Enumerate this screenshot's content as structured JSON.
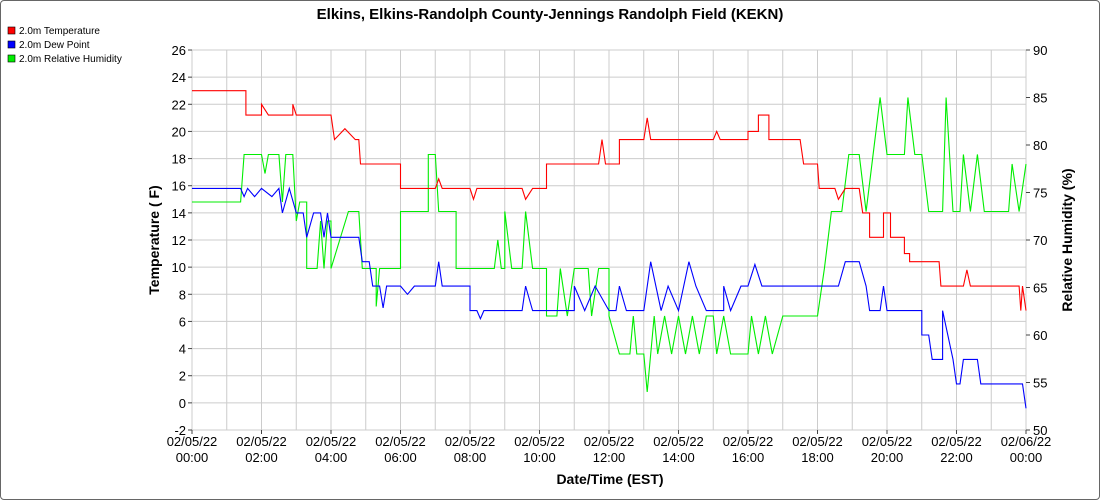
{
  "chart_data": {
    "type": "line",
    "title": "Elkins, Elkins-Randolph County-Jennings Randolph Field (KEKN)",
    "xlabel": "Date/Time (EST)",
    "ylabel_left": "Temperature ( F)",
    "ylabel_right": "Relative Humidity (%)",
    "ylim_left": [
      -2,
      26
    ],
    "ylim_right": [
      50,
      90
    ],
    "xlim_hours": [
      0,
      24
    ],
    "left_ticks": [
      -2,
      0,
      2,
      4,
      6,
      8,
      10,
      12,
      14,
      16,
      18,
      20,
      22,
      24,
      26
    ],
    "right_ticks": [
      50,
      55,
      60,
      65,
      70,
      75,
      80,
      85,
      90
    ],
    "x_ticks": [
      {
        "date": "02/05/22",
        "time": "00:00"
      },
      {
        "date": "02/05/22",
        "time": "02:00"
      },
      {
        "date": "02/05/22",
        "time": "04:00"
      },
      {
        "date": "02/05/22",
        "time": "06:00"
      },
      {
        "date": "02/05/22",
        "time": "08:00"
      },
      {
        "date": "02/05/22",
        "time": "10:00"
      },
      {
        "date": "02/05/22",
        "time": "12:00"
      },
      {
        "date": "02/05/22",
        "time": "14:00"
      },
      {
        "date": "02/05/22",
        "time": "16:00"
      },
      {
        "date": "02/05/22",
        "time": "18:00"
      },
      {
        "date": "02/05/22",
        "time": "20:00"
      },
      {
        "date": "02/05/22",
        "time": "22:00"
      },
      {
        "date": "02/06/22",
        "time": "00:00"
      }
    ],
    "grid": true,
    "legend_position": "top-left",
    "series": [
      {
        "name": "2.0m Temperature",
        "axis": "left",
        "color": "#ff0000",
        "points": [
          [
            0,
            23
          ],
          [
            1.55,
            23
          ],
          [
            1.55,
            21.2
          ],
          [
            2.0,
            21.2
          ],
          [
            2.0,
            22
          ],
          [
            2.2,
            21.2
          ],
          [
            2.9,
            21.2
          ],
          [
            2.9,
            22
          ],
          [
            3.0,
            21.2
          ],
          [
            3.5,
            21.2
          ],
          [
            3.8,
            21.2
          ],
          [
            4.0,
            21.2
          ],
          [
            4.1,
            19.4
          ],
          [
            4.4,
            20.2
          ],
          [
            4.7,
            19.4
          ],
          [
            4.8,
            19.4
          ],
          [
            4.85,
            17.6
          ],
          [
            5.2,
            17.6
          ],
          [
            6.0,
            17.6
          ],
          [
            6.0,
            15.8
          ],
          [
            7.0,
            15.8
          ],
          [
            7.1,
            16.5
          ],
          [
            7.2,
            15.8
          ],
          [
            8.0,
            15.8
          ],
          [
            8.1,
            15
          ],
          [
            8.2,
            15.8
          ],
          [
            9.5,
            15.8
          ],
          [
            9.6,
            15
          ],
          [
            9.8,
            15.8
          ],
          [
            10.0,
            15.8
          ],
          [
            10.2,
            15.8
          ],
          [
            10.2,
            17.6
          ],
          [
            11.7,
            17.6
          ],
          [
            11.8,
            19.4
          ],
          [
            11.9,
            17.6
          ],
          [
            12.0,
            17.6
          ],
          [
            12.3,
            17.6
          ],
          [
            12.3,
            19.4
          ],
          [
            13.0,
            19.4
          ],
          [
            13.1,
            21
          ],
          [
            13.2,
            19.4
          ],
          [
            15.0,
            19.4
          ],
          [
            15.1,
            20
          ],
          [
            15.2,
            19.4
          ],
          [
            16.0,
            19.4
          ],
          [
            16.0,
            20
          ],
          [
            16.3,
            20
          ],
          [
            16.3,
            21.2
          ],
          [
            16.6,
            21.2
          ],
          [
            16.6,
            19.4
          ],
          [
            17.5,
            19.4
          ],
          [
            17.6,
            17.6
          ],
          [
            18.0,
            17.6
          ],
          [
            18.05,
            15.8
          ],
          [
            18.5,
            15.8
          ],
          [
            18.6,
            15
          ],
          [
            18.8,
            15.8
          ],
          [
            19.2,
            15.8
          ],
          [
            19.3,
            14
          ],
          [
            19.5,
            14
          ],
          [
            19.5,
            12.2
          ],
          [
            19.9,
            12.2
          ],
          [
            19.9,
            14
          ],
          [
            20.1,
            14
          ],
          [
            20.1,
            12.2
          ],
          [
            20.5,
            12.2
          ],
          [
            20.5,
            11
          ],
          [
            20.65,
            11
          ],
          [
            20.65,
            10.4
          ],
          [
            21.5,
            10.4
          ],
          [
            21.55,
            8.6
          ],
          [
            22.2,
            8.6
          ],
          [
            22.3,
            9.8
          ],
          [
            22.4,
            8.6
          ],
          [
            23.8,
            8.6
          ],
          [
            23.85,
            6.8
          ],
          [
            23.9,
            8.6
          ],
          [
            24.0,
            6.8
          ]
        ]
      },
      {
        "name": "2.0m Dew Point",
        "axis": "left",
        "color": "#0000ff",
        "points": [
          [
            0,
            15.8
          ],
          [
            1.4,
            15.8
          ],
          [
            1.5,
            15.2
          ],
          [
            1.6,
            15.8
          ],
          [
            1.8,
            15.2
          ],
          [
            2.0,
            15.8
          ],
          [
            2.3,
            15.2
          ],
          [
            2.5,
            15.8
          ],
          [
            2.6,
            14
          ],
          [
            2.8,
            15.8
          ],
          [
            3.0,
            14
          ],
          [
            3.2,
            14
          ],
          [
            3.3,
            12.2
          ],
          [
            3.5,
            14
          ],
          [
            3.7,
            14
          ],
          [
            3.8,
            12.2
          ],
          [
            3.9,
            14
          ],
          [
            4.0,
            12.2
          ],
          [
            4.8,
            12.2
          ],
          [
            4.9,
            10.4
          ],
          [
            5.1,
            10.4
          ],
          [
            5.2,
            8.6
          ],
          [
            5.4,
            8.6
          ],
          [
            5.5,
            7
          ],
          [
            5.6,
            8.6
          ],
          [
            6.0,
            8.6
          ],
          [
            6.2,
            8
          ],
          [
            6.4,
            8.6
          ],
          [
            7.0,
            8.6
          ],
          [
            7.1,
            10.4
          ],
          [
            7.2,
            8.6
          ],
          [
            8.0,
            8.6
          ],
          [
            8.0,
            6.8
          ],
          [
            8.2,
            6.8
          ],
          [
            8.3,
            6.2
          ],
          [
            8.4,
            6.8
          ],
          [
            9.5,
            6.8
          ],
          [
            9.6,
            8.6
          ],
          [
            9.8,
            6.8
          ],
          [
            11.0,
            6.8
          ],
          [
            11.0,
            8.6
          ],
          [
            11.3,
            6.8
          ],
          [
            11.6,
            8.6
          ],
          [
            12.0,
            6.8
          ],
          [
            12.2,
            6.8
          ],
          [
            12.3,
            8.6
          ],
          [
            12.5,
            6.8
          ],
          [
            13.0,
            6.8
          ],
          [
            13.2,
            10.4
          ],
          [
            13.5,
            6.8
          ],
          [
            13.7,
            8.6
          ],
          [
            14.0,
            6.8
          ],
          [
            14.3,
            10.4
          ],
          [
            14.5,
            8.6
          ],
          [
            14.8,
            6.8
          ],
          [
            15.3,
            6.8
          ],
          [
            15.3,
            8.6
          ],
          [
            15.5,
            6.8
          ],
          [
            15.8,
            8.6
          ],
          [
            16.0,
            8.6
          ],
          [
            16.2,
            10.2
          ],
          [
            16.4,
            8.6
          ],
          [
            18.0,
            8.6
          ],
          [
            18.2,
            8.6
          ],
          [
            18.6,
            8.6
          ],
          [
            18.8,
            10.4
          ],
          [
            19.2,
            10.4
          ],
          [
            19.4,
            8.6
          ],
          [
            19.5,
            6.8
          ],
          [
            19.8,
            6.8
          ],
          [
            19.9,
            8.6
          ],
          [
            20.0,
            6.8
          ],
          [
            20.3,
            6.8
          ],
          [
            20.5,
            6.8
          ],
          [
            21.0,
            6.8
          ],
          [
            21.0,
            5
          ],
          [
            21.2,
            5
          ],
          [
            21.3,
            3.2
          ],
          [
            21.6,
            3.2
          ],
          [
            21.6,
            6.8
          ],
          [
            21.9,
            3.2
          ],
          [
            22.0,
            1.4
          ],
          [
            22.1,
            1.4
          ],
          [
            22.2,
            3.2
          ],
          [
            22.6,
            3.2
          ],
          [
            22.7,
            1.4
          ],
          [
            23.5,
            1.4
          ],
          [
            23.6,
            1.4
          ],
          [
            23.9,
            1.4
          ],
          [
            24.0,
            -0.4
          ]
        ]
      },
      {
        "name": "2.0m Relative Humidity",
        "axis": "right",
        "color": "#00ee00",
        "points": [
          [
            0,
            74
          ],
          [
            1.4,
            74
          ],
          [
            1.5,
            79
          ],
          [
            2.0,
            79
          ],
          [
            2.1,
            77
          ],
          [
            2.2,
            79
          ],
          [
            2.5,
            79
          ],
          [
            2.6,
            74
          ],
          [
            2.7,
            79
          ],
          [
            2.9,
            79
          ],
          [
            3.0,
            72
          ],
          [
            3.1,
            74
          ],
          [
            3.3,
            74
          ],
          [
            3.3,
            67
          ],
          [
            3.6,
            67
          ],
          [
            3.7,
            72
          ],
          [
            3.8,
            67
          ],
          [
            3.9,
            72
          ],
          [
            4.0,
            72
          ],
          [
            4.0,
            67
          ],
          [
            4.5,
            73
          ],
          [
            4.8,
            73
          ],
          [
            4.9,
            67
          ],
          [
            5.3,
            67
          ],
          [
            5.3,
            63
          ],
          [
            5.4,
            67
          ],
          [
            6.0,
            67
          ],
          [
            6.0,
            73
          ],
          [
            6.5,
            73
          ],
          [
            6.8,
            73
          ],
          [
            6.8,
            79
          ],
          [
            7.0,
            79
          ],
          [
            7.1,
            73
          ],
          [
            7.6,
            73
          ],
          [
            7.6,
            67
          ],
          [
            8.0,
            67
          ],
          [
            8.7,
            67
          ],
          [
            8.8,
            70
          ],
          [
            8.9,
            67
          ],
          [
            9.0,
            67
          ],
          [
            9.0,
            73
          ],
          [
            9.2,
            67
          ],
          [
            9.5,
            67
          ],
          [
            9.6,
            73
          ],
          [
            9.8,
            67
          ],
          [
            10.0,
            67
          ],
          [
            10.2,
            67
          ],
          [
            10.2,
            62
          ],
          [
            10.5,
            62
          ],
          [
            10.6,
            67
          ],
          [
            10.8,
            62
          ],
          [
            11.0,
            67
          ],
          [
            11.4,
            67
          ],
          [
            11.5,
            62
          ],
          [
            11.7,
            67
          ],
          [
            12.0,
            67
          ],
          [
            12.0,
            62
          ],
          [
            12.3,
            58
          ],
          [
            12.6,
            58
          ],
          [
            12.7,
            62
          ],
          [
            12.8,
            58
          ],
          [
            13.0,
            58
          ],
          [
            13.1,
            54
          ],
          [
            13.3,
            62
          ],
          [
            13.4,
            58
          ],
          [
            13.6,
            62
          ],
          [
            13.8,
            58
          ],
          [
            14.0,
            62
          ],
          [
            14.2,
            58
          ],
          [
            14.4,
            62
          ],
          [
            14.6,
            58
          ],
          [
            14.8,
            62
          ],
          [
            15.0,
            62
          ],
          [
            15.1,
            58
          ],
          [
            15.3,
            62
          ],
          [
            15.5,
            58
          ],
          [
            16.0,
            58
          ],
          [
            16.1,
            62
          ],
          [
            16.3,
            58
          ],
          [
            16.5,
            62
          ],
          [
            16.7,
            58
          ],
          [
            17.0,
            62
          ],
          [
            18.0,
            62
          ],
          [
            18.2,
            67
          ],
          [
            18.4,
            73
          ],
          [
            18.7,
            73
          ],
          [
            18.9,
            79
          ],
          [
            19.2,
            79
          ],
          [
            19.4,
            73
          ],
          [
            19.6,
            79
          ],
          [
            19.8,
            85
          ],
          [
            20.0,
            79
          ],
          [
            20.5,
            79
          ],
          [
            20.6,
            85
          ],
          [
            20.8,
            79
          ],
          [
            21.0,
            79
          ],
          [
            21.2,
            73
          ],
          [
            21.6,
            73
          ],
          [
            21.7,
            85
          ],
          [
            21.9,
            73
          ],
          [
            22.1,
            73
          ],
          [
            22.2,
            79
          ],
          [
            22.4,
            73
          ],
          [
            22.6,
            79
          ],
          [
            22.8,
            73
          ],
          [
            23.0,
            73
          ],
          [
            23.5,
            73
          ],
          [
            23.6,
            78
          ],
          [
            23.8,
            73
          ],
          [
            24.0,
            78
          ]
        ]
      }
    ]
  }
}
